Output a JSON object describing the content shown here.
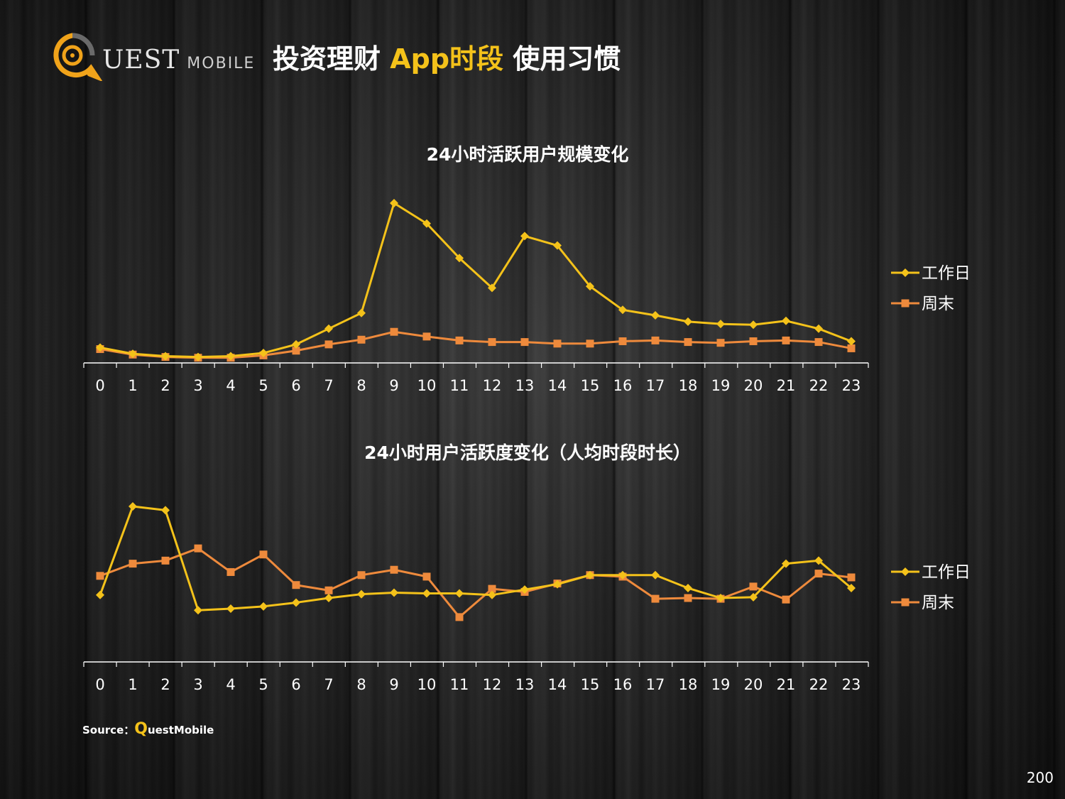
{
  "header": {
    "logo_text": "UEST",
    "logo_sub": "MOBILE",
    "title_part1": "投资理财",
    "title_accent": "App时段",
    "title_part2": "使用习惯"
  },
  "colors": {
    "workday": "#f4c21a",
    "weekend": "#ee8a3c",
    "axis": "#ffffff"
  },
  "chart_data": [
    {
      "type": "line",
      "title": "24小时活跃用户规模变化",
      "xlabel": "",
      "ylabel": "",
      "legend_position": "right",
      "grid": false,
      "categories": [
        "0",
        "1",
        "2",
        "3",
        "4",
        "5",
        "6",
        "7",
        "8",
        "9",
        "10",
        "11",
        "12",
        "13",
        "14",
        "15",
        "16",
        "17",
        "18",
        "19",
        "20",
        "21",
        "22",
        "23"
      ],
      "ylim": [
        0,
        100
      ],
      "series": [
        {
          "name": "工作日",
          "marker": "diamond",
          "values": [
            8,
            4,
            2.5,
            2,
            2.5,
            4.5,
            10,
            20,
            30,
            100,
            87,
            65,
            46,
            79,
            73,
            47,
            32,
            28.5,
            24.5,
            23,
            22.5,
            25,
            20,
            12
          ]
        },
        {
          "name": "周末",
          "marker": "square",
          "values": [
            7,
            3.5,
            2,
            1.5,
            1.5,
            3,
            6,
            10,
            13,
            18,
            15,
            12.5,
            11.5,
            11.5,
            10.5,
            10.5,
            12,
            12.5,
            11.5,
            11,
            12,
            12.5,
            11.5,
            7.5
          ]
        }
      ]
    },
    {
      "type": "line",
      "title": "24小时用户活跃度变化（人均时段时长）",
      "xlabel": "",
      "ylabel": "",
      "legend_position": "right",
      "grid": false,
      "categories": [
        "0",
        "1",
        "2",
        "3",
        "4",
        "5",
        "6",
        "7",
        "8",
        "9",
        "10",
        "11",
        "12",
        "13",
        "14",
        "15",
        "16",
        "17",
        "18",
        "19",
        "20",
        "21",
        "22",
        "23"
      ],
      "ylim": [
        0,
        100
      ],
      "series": [
        {
          "name": "工作日",
          "marker": "diamond",
          "values": [
            42,
            100,
            97.5,
            32,
            33,
            34.5,
            37,
            40,
            42.5,
            43.5,
            43,
            43,
            42,
            45.5,
            49,
            55,
            55,
            55,
            46.5,
            40,
            40.5,
            62.5,
            64.5,
            46.5
          ]
        },
        {
          "name": "周末",
          "marker": "square",
          "values": [
            54.5,
            62.5,
            64.5,
            72.5,
            57,
            68.5,
            48.5,
            45,
            55,
            58.5,
            54,
            27.5,
            46,
            44,
            49.5,
            55,
            54,
            39.5,
            40,
            39.5,
            47.5,
            39,
            56,
            53.5
          ]
        }
      ]
    }
  ],
  "footer": {
    "source_label": "Source：",
    "source_q": "Q",
    "source_rest": "uestMobile",
    "page_number": "200"
  }
}
